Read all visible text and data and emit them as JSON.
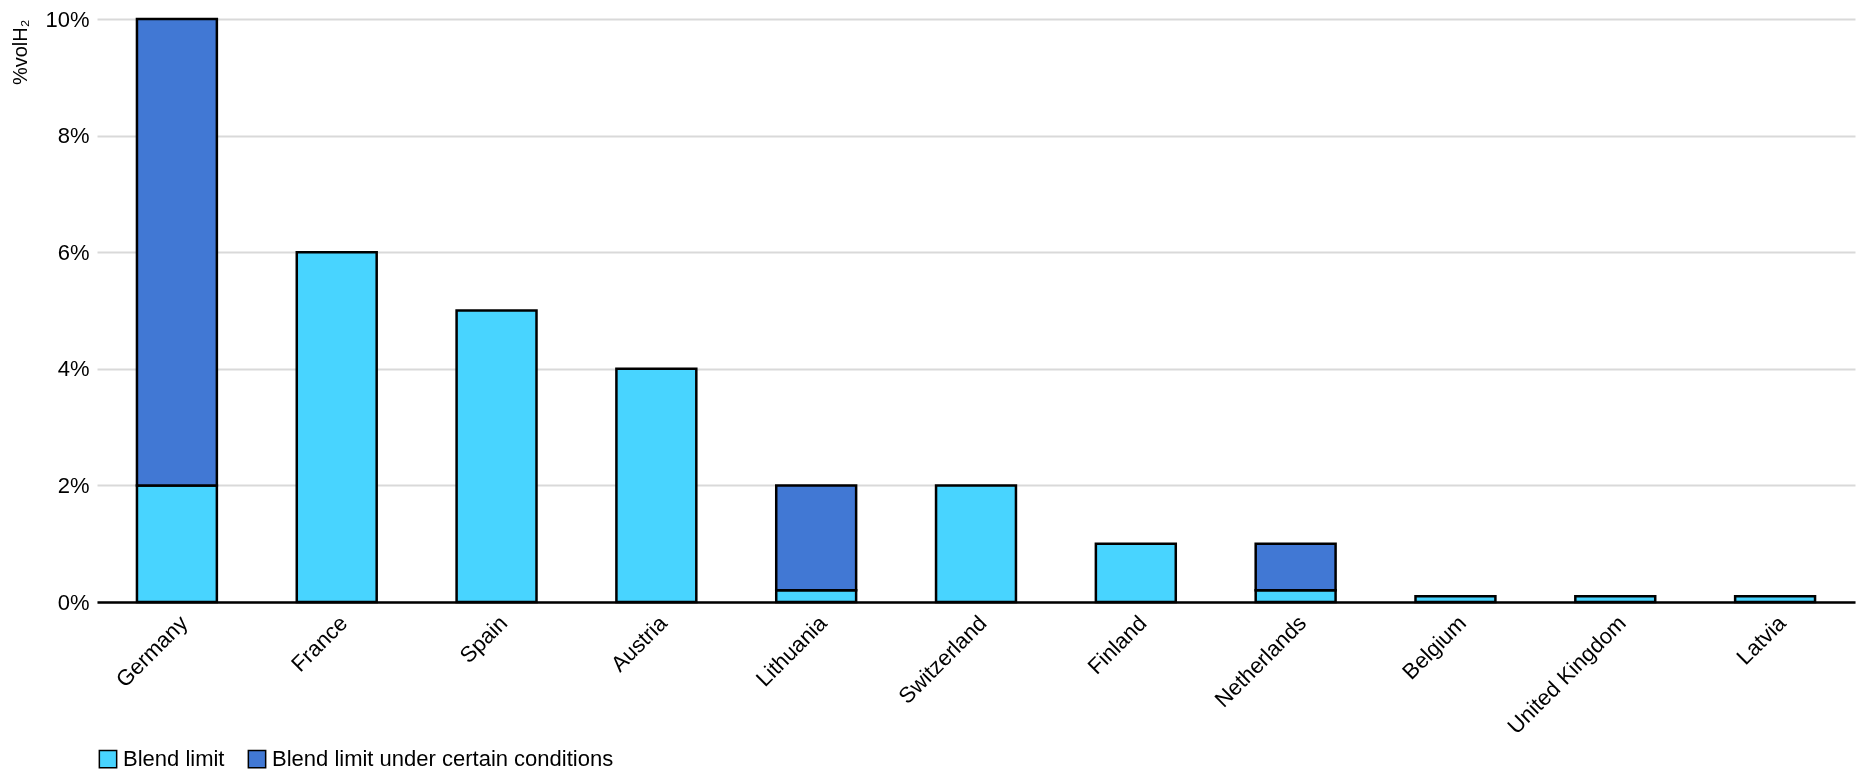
{
  "chart_data": {
    "type": "bar",
    "ylabel": "%volH₂",
    "stacked": true,
    "legend": "bottom",
    "grid": "y",
    "categories": [
      "Germany",
      "France",
      "Spain",
      "Austria",
      "Lithuania",
      "Switzerland",
      "Finland",
      "Netherlands",
      "Belgium",
      "United Kingdom",
      "Latvia"
    ],
    "series": [
      {
        "name": "Blend limit",
        "color": "#48d4ff",
        "values": [
          2,
          6,
          5,
          4,
          0.2,
          2,
          1,
          0.2,
          0.1,
          0.1,
          0.1
        ]
      },
      {
        "name": "Blend limit under certain conditions",
        "color": "#4178d4",
        "values": [
          8,
          null,
          null,
          null,
          1.8,
          null,
          null,
          0.8,
          null,
          null,
          null
        ]
      }
    ],
    "ylim": [
      0,
      10
    ],
    "yticks": [
      {
        "value": 0,
        "label": "0%"
      },
      {
        "value": 2,
        "label": "2%"
      },
      {
        "value": 4,
        "label": "4%"
      },
      {
        "value": 6,
        "label": "6%"
      },
      {
        "value": 8,
        "label": "8%"
      },
      {
        "value": 10,
        "label": "10%"
      }
    ]
  }
}
